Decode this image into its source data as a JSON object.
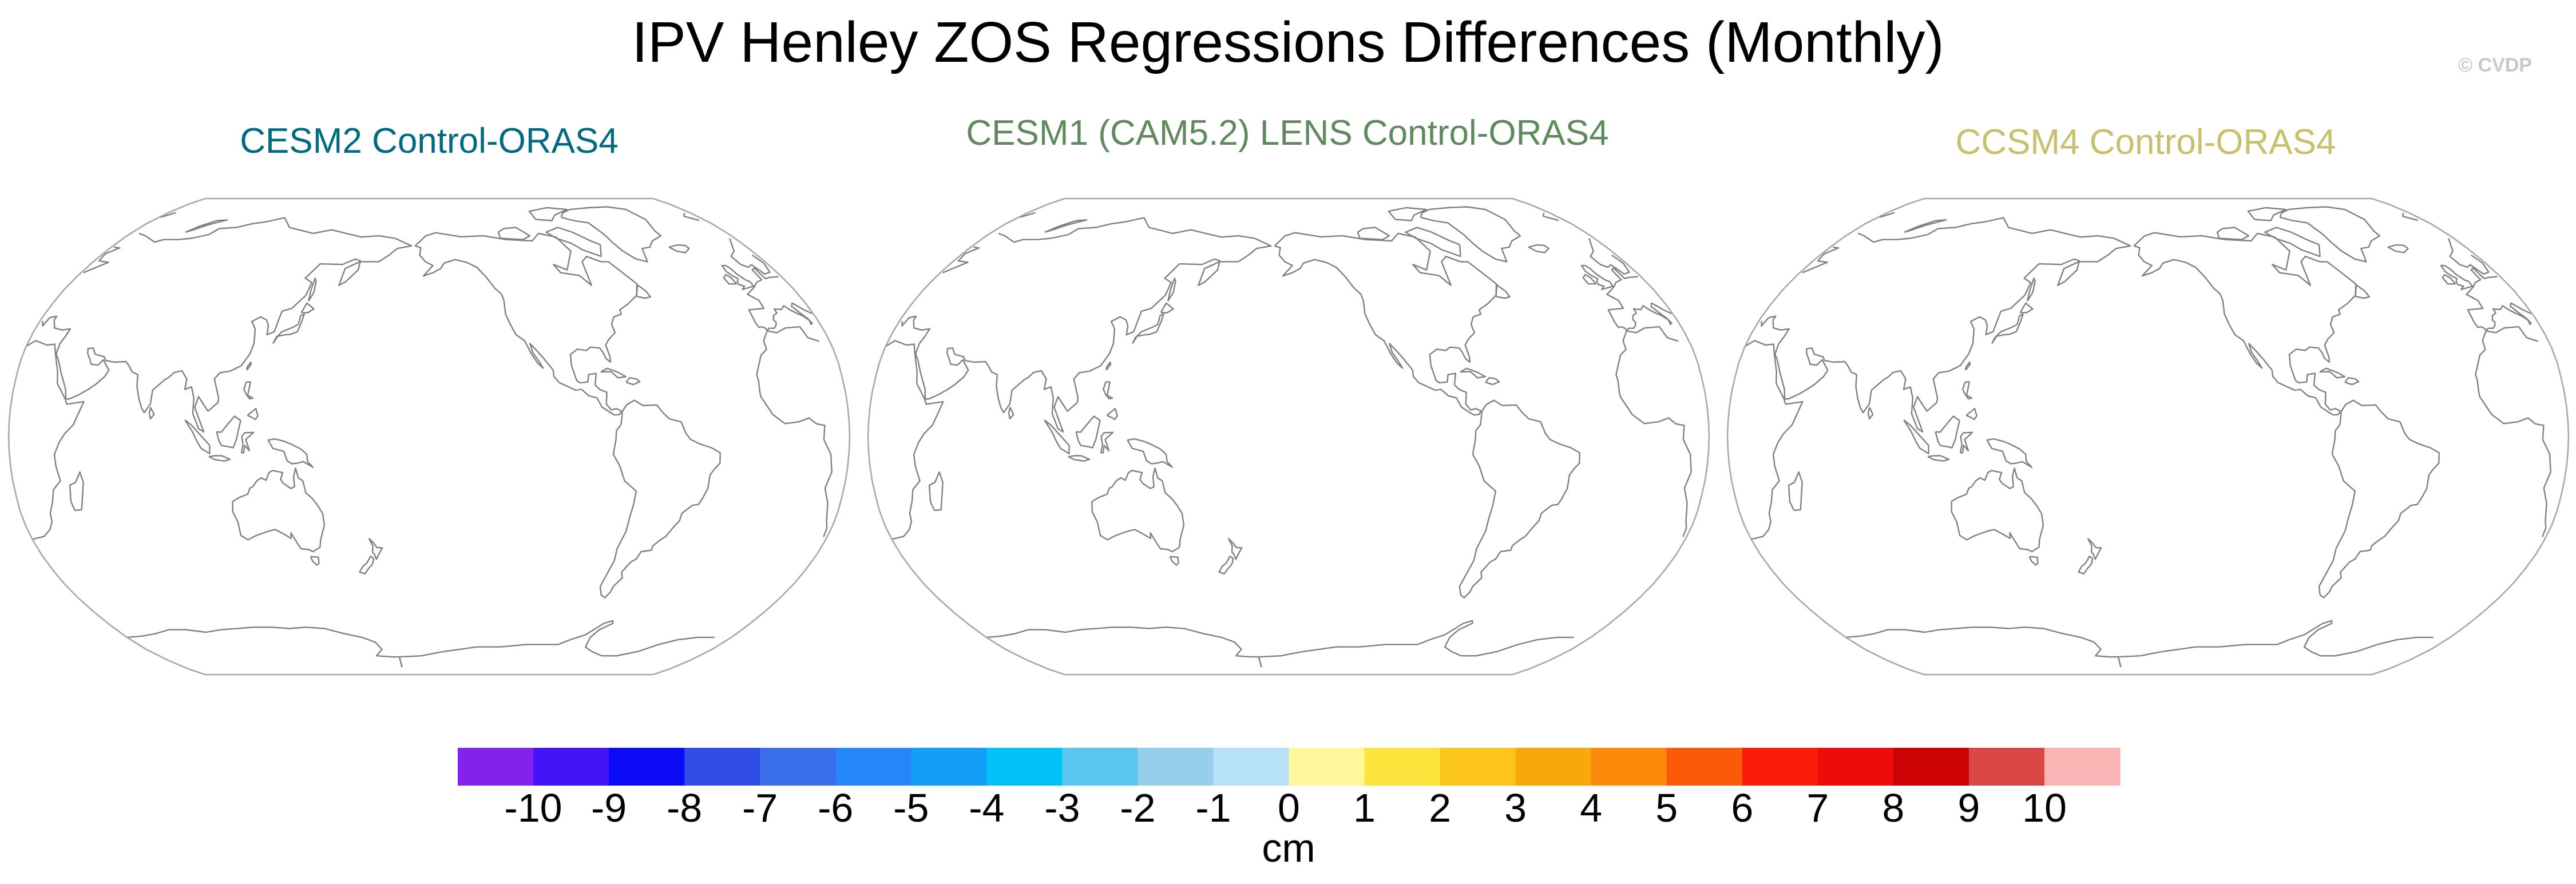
{
  "title": "IPV Henley ZOS Regressions Differences (Monthly)",
  "watermark": "© CVDP",
  "panels": [
    {
      "title": "CESM2 Control-ORAS4",
      "title_color": "#006b80"
    },
    {
      "title": "CESM1 (CAM5.2) LENS Control-ORAS4",
      "title_color": "#5e8a5e"
    },
    {
      "title": "CCSM4 Control-ORAS4",
      "title_color": "#c8c06a"
    }
  ],
  "map": {
    "projection": "robinson",
    "central_longitude": 200,
    "outline_color": "#a8a8a8",
    "coast_color": "#808080",
    "field": "none shown"
  },
  "colorbar": {
    "colors": [
      "#8222ec",
      "#4413f7",
      "#0a0af7",
      "#2f4de6",
      "#3a6ee8",
      "#2486f7",
      "#129ef7",
      "#01c2f9",
      "#58c8f3",
      "#96cfec",
      "#b6e1f6",
      "#fff799",
      "#ffe33d",
      "#fbc51a",
      "#f7a90a",
      "#fb890a",
      "#fb5a0a",
      "#f91d0a",
      "#ee0c0a",
      "#cc0205",
      "#da4545",
      "#fbb4b4"
    ],
    "tick_labels": [
      "-10",
      "-9",
      "-8",
      "-7",
      "-6",
      "-5",
      "-4",
      "-3",
      "-2",
      "-1",
      "0",
      "1",
      "2",
      "3",
      "4",
      "5",
      "6",
      "7",
      "8",
      "9",
      "10"
    ],
    "units": "cm"
  }
}
